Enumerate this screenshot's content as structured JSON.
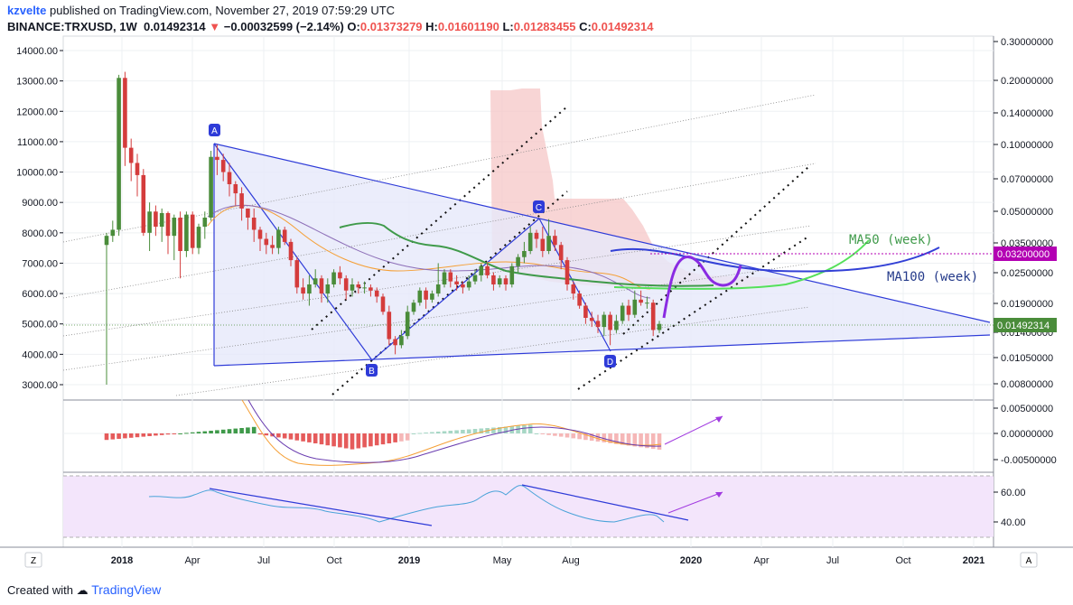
{
  "header": {
    "author": "kzvelte",
    "published_text": "published on TradingView.com, November 27, 2019 07:59:29 UTC",
    "symbol": "BINANCE:TRXUSD, 1W",
    "price": "0.01492314",
    "arrow": "▼",
    "change": "−0.00032599 (−2.14%)",
    "o_label": "O:",
    "o_value": "0.01373279",
    "h_label": "H:",
    "h_value": "0.01601190",
    "l_label": "L:",
    "l_value": "0.01283455",
    "c_label": "C:",
    "c_value": "0.01492314"
  },
  "footer": {
    "created_with": "Created with",
    "brand": "TradingView"
  },
  "colors": {
    "bull": "#4a8c3a",
    "bear": "#d43c3c",
    "triangle": "#2e3bd8",
    "channel": "#000000",
    "ma50": "#3f9a4a",
    "cloud": "#f6c7c7",
    "purple": "#8a2be2",
    "rsi_bg": "#f3e5fb"
  },
  "chart_data": [
    {
      "type": "line",
      "name": "TRXUSD weekly",
      "left_axis": {
        "ticks": [
          "14000.00",
          "13000.00",
          "12000.00",
          "11000.00",
          "10000.00",
          "9000.00",
          "8000.00",
          "7000.00",
          "6000.00",
          "5000.00",
          "4000.00",
          "3000.00"
        ]
      },
      "right_axis": {
        "log_scale": true,
        "ticks": [
          "0.30000000",
          "0.20000000",
          "0.14000000",
          "0.10000000",
          "0.07000000",
          "0.05000000",
          "0.03500000",
          "0.02500000",
          "0.01900000",
          "0.01400000",
          "0.01050000",
          "0.00800000"
        ]
      },
      "last_price_label": "0.01492314",
      "marker_label": "0.03200000",
      "x_ticks": [
        "2018",
        "Apr",
        "Jul",
        "Oct",
        "2019",
        "May",
        "Aug",
        "2020",
        "Apr",
        "Jul",
        "Oct",
        "2021"
      ],
      "points": [
        {
          "label": "A",
          "value": 11000
        },
        {
          "label": "B",
          "value": 3900
        },
        {
          "label": "C",
          "value": 8450
        },
        {
          "label": "D",
          "value": 4200
        }
      ],
      "annotations": [
        "MA50 (week)",
        "MA100 (week)"
      ],
      "candles": [
        [
          7600,
          7900,
          3000,
          8000
        ],
        [
          7900,
          8100,
          7700,
          8400
        ],
        [
          8100,
          13100,
          7900,
          13200
        ],
        [
          13100,
          10800,
          10200,
          13300
        ],
        [
          10800,
          10300,
          9700,
          11100
        ],
        [
          10300,
          9900,
          9200,
          10600
        ],
        [
          9900,
          8000,
          7900,
          10100
        ],
        [
          8000,
          8700,
          7400,
          9000
        ],
        [
          8700,
          8200,
          7900,
          8900
        ],
        [
          8200,
          8650,
          7700,
          8800
        ],
        [
          8650,
          7900,
          7300,
          8700
        ],
        [
          7900,
          8500,
          7100,
          8600
        ],
        [
          8500,
          7400,
          6500,
          8700
        ],
        [
          7400,
          8600,
          7200,
          8700
        ],
        [
          8600,
          7500,
          7300,
          8700
        ],
        [
          7500,
          8200,
          7300,
          8300
        ],
        [
          8200,
          8500,
          7800,
          8700
        ],
        [
          8500,
          10500,
          8400,
          10700
        ],
        [
          10500,
          10400,
          9900,
          10900
        ],
        [
          10400,
          10000,
          9700,
          10600
        ],
        [
          10000,
          9600,
          9200,
          10300
        ],
        [
          9600,
          9300,
          8900,
          9700
        ],
        [
          9300,
          8800,
          8400,
          9500
        ],
        [
          8800,
          8500,
          8100,
          8800
        ],
        [
          8500,
          8100,
          7700,
          8800
        ],
        [
          8100,
          7800,
          7400,
          8200
        ],
        [
          7800,
          7600,
          7300,
          8000
        ],
        [
          7600,
          7500,
          7300,
          7900
        ],
        [
          7500,
          8100,
          7300,
          8200
        ],
        [
          8100,
          7700,
          7600,
          8200
        ],
        [
          7700,
          7100,
          6900,
          7800
        ],
        [
          7100,
          6200,
          6000,
          7200
        ],
        [
          6200,
          6000,
          5800,
          6500
        ],
        [
          6000,
          6300,
          5600,
          6600
        ],
        [
          6300,
          6500,
          6200,
          6800
        ],
        [
          6500,
          6000,
          5700,
          6600
        ],
        [
          6000,
          6300,
          5700,
          6500
        ],
        [
          6300,
          6700,
          6200,
          6800
        ],
        [
          6700,
          6500,
          6300,
          6900
        ],
        [
          6500,
          6100,
          5800,
          6600
        ],
        [
          6100,
          6300,
          5900,
          6500
        ],
        [
          6300,
          6200,
          6000,
          6400
        ],
        [
          6200,
          6200,
          6000,
          6400
        ],
        [
          6200,
          6100,
          5900,
          6300
        ],
        [
          6100,
          5900,
          5700,
          6200
        ],
        [
          5900,
          5400,
          5300,
          6000
        ],
        [
          5400,
          4500,
          4300,
          5600
        ],
        [
          4500,
          4300,
          4000,
          4600
        ],
        [
          4300,
          4600,
          4200,
          4800
        ],
        [
          4600,
          5400,
          4500,
          5600
        ],
        [
          5400,
          5700,
          5300,
          5800
        ],
        [
          5700,
          6100,
          5600,
          6200
        ],
        [
          6100,
          5800,
          5500,
          6200
        ],
        [
          5800,
          6000,
          5700,
          6100
        ],
        [
          6000,
          6300,
          5900,
          7000
        ],
        [
          6300,
          6700,
          6200,
          6800
        ],
        [
          6700,
          6400,
          6200,
          6800
        ],
        [
          6400,
          6300,
          6100,
          6600
        ],
        [
          6300,
          6200,
          6000,
          6400
        ],
        [
          6200,
          6400,
          6100,
          6600
        ],
        [
          6400,
          6600,
          6300,
          6800
        ],
        [
          6600,
          6900,
          6400,
          7000
        ],
        [
          6900,
          6600,
          6500,
          7000
        ],
        [
          6600,
          6300,
          6100,
          6700
        ],
        [
          6300,
          6500,
          6200,
          6600
        ],
        [
          6500,
          6300,
          6100,
          6600
        ],
        [
          6300,
          6900,
          6200,
          7000
        ],
        [
          6900,
          7200,
          6700,
          7300
        ],
        [
          7200,
          7400,
          7000,
          7700
        ],
        [
          7400,
          8000,
          7300,
          8200
        ],
        [
          8000,
          7800,
          7500,
          8100
        ],
        [
          7800,
          7400,
          7200,
          8200
        ],
        [
          7400,
          7900,
          7300,
          8450
        ],
        [
          7900,
          7600,
          7400,
          8100
        ],
        [
          7600,
          7100,
          6800,
          7700
        ],
        [
          7100,
          6300,
          6100,
          7200
        ],
        [
          6300,
          6000,
          5800,
          6400
        ],
        [
          6000,
          5600,
          5500,
          6100
        ],
        [
          5600,
          5200,
          5000,
          5700
        ],
        [
          5200,
          5100,
          4900,
          5400
        ],
        [
          5100,
          4900,
          4700,
          5300
        ],
        [
          4900,
          5300,
          4600,
          5400
        ],
        [
          5300,
          4800,
          4300,
          5400
        ],
        [
          4800,
          5100,
          4700,
          5300
        ],
        [
          5100,
          5600,
          5000,
          5700
        ],
        [
          5600,
          5300,
          5100,
          5800
        ],
        [
          5300,
          5800,
          5200,
          6100
        ],
        [
          5800,
          5700,
          5600,
          6100
        ],
        [
          5700,
          5700,
          5500,
          5900
        ],
        [
          5700,
          4800,
          4600,
          5800
        ],
        [
          4800,
          5000,
          4700,
          5100
        ]
      ]
    },
    {
      "type": "line",
      "name": "MACD",
      "right_axis": {
        "ticks": [
          "0.00500000",
          "0.00000000",
          "-0.00500000"
        ]
      }
    },
    {
      "type": "line",
      "name": "RSI",
      "right_axis": {
        "ticks": [
          "60.00",
          "40.00"
        ]
      }
    }
  ],
  "misc": {
    "left_corner": "Z",
    "right_corner": "A"
  }
}
